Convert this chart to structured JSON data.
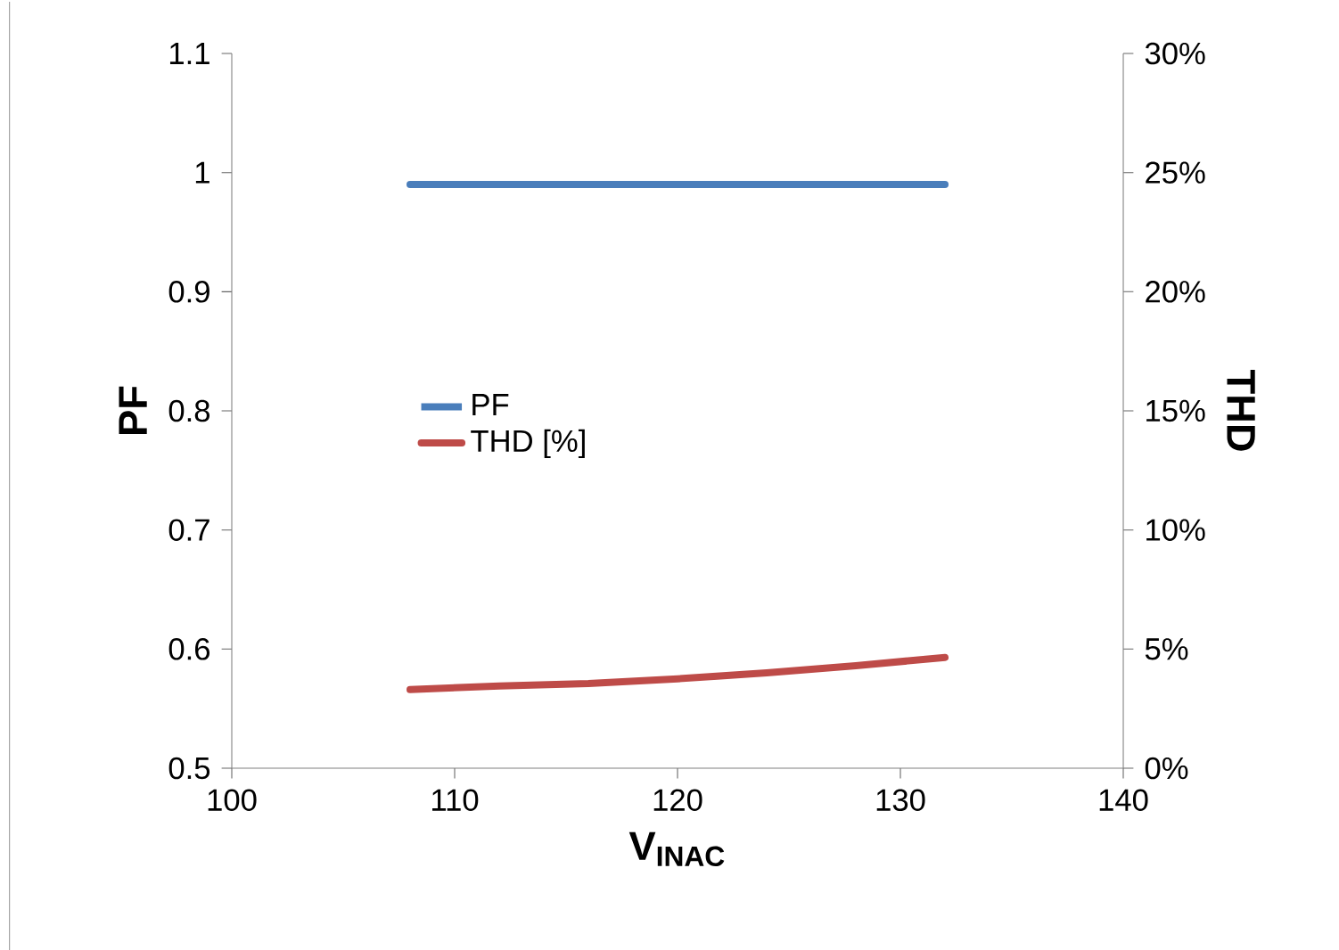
{
  "chart_data": {
    "type": "line",
    "xlabel": "V$_{INAC}$",
    "ylabel": "PF",
    "y2label": "THD",
    "x": [
      108,
      112,
      116,
      120,
      124,
      128,
      132
    ],
    "series": [
      {
        "name": "PF",
        "color": "#4a7ebb",
        "values": [
          0.99,
          0.99,
          0.99,
          0.99,
          0.99,
          0.99,
          0.99
        ]
      },
      {
        "name": "THD [%]",
        "color": "#be4b48",
        "axis": "y2",
        "values": [
          3.3,
          3.45,
          3.55,
          3.75,
          4.0,
          4.3,
          4.65
        ]
      }
    ],
    "xlim": [
      100,
      140
    ],
    "xticks": [
      100,
      110,
      120,
      130,
      140
    ],
    "ylim": [
      0.5,
      1.1
    ],
    "yticks": [
      0.5,
      0.6,
      0.7,
      0.8,
      0.9,
      1,
      1.1
    ],
    "y2lim": [
      0,
      30
    ],
    "y2ticks": [
      {
        "value": 0,
        "label": "0%"
      },
      {
        "value": 5,
        "label": "5%"
      },
      {
        "value": 10,
        "label": "10%"
      },
      {
        "value": 15,
        "label": "15%"
      },
      {
        "value": 20,
        "label": "20%"
      },
      {
        "value": 25,
        "label": "25%"
      },
      {
        "value": 30,
        "label": "30%"
      }
    ],
    "grid": false,
    "legend": "left",
    "marker": "none",
    "line_style": "solid"
  }
}
